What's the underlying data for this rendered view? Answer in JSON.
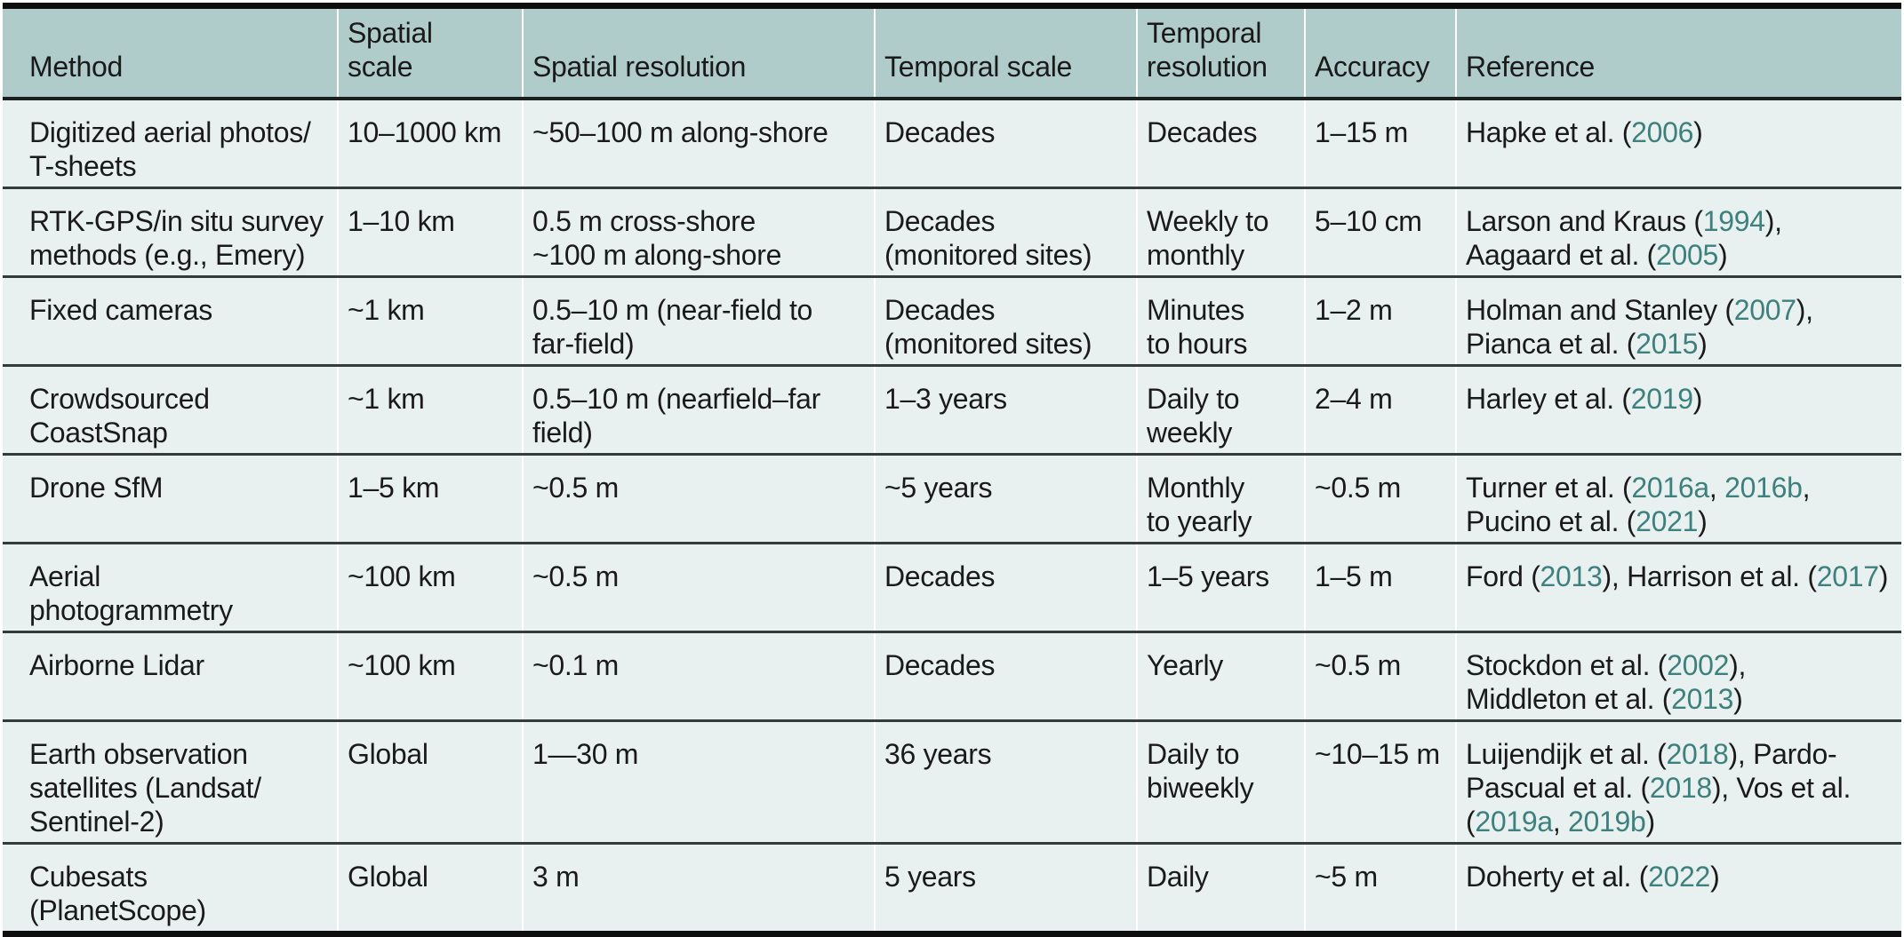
{
  "colors": {
    "header_bg": "#afcbca",
    "row_bg": "#e9f1f0",
    "text": "#1a1a1a",
    "link": "#3e807d",
    "rule": "#353b3b",
    "bar": "#0e0e0e"
  },
  "table": {
    "columns": [
      {
        "id": "method",
        "label": "Method"
      },
      {
        "id": "spatial_scale",
        "label": "Spatial\nscale"
      },
      {
        "id": "spatial_resolution",
        "label": "Spatial resolution"
      },
      {
        "id": "temporal_scale",
        "label": "Temporal scale"
      },
      {
        "id": "temporal_resolution",
        "label": "Temporal\nresolution"
      },
      {
        "id": "accuracy",
        "label": "Accuracy"
      },
      {
        "id": "reference",
        "label": "Reference"
      }
    ],
    "rows": [
      {
        "method": "Digitized aerial photos/\nT-sheets",
        "spatial_scale": "10–1000 km",
        "spatial_resolution": "~50–100 m along-shore",
        "temporal_scale": "Decades",
        "temporal_resolution": "Decades",
        "accuracy": "1–15 m",
        "reference": {
          "text": "Hapke et al. (2006)",
          "links": [
            "2006"
          ]
        }
      },
      {
        "method": "RTK-GPS/in situ survey\nmethods (e.g., Emery)",
        "spatial_scale": "1–10 km",
        "spatial_resolution": "0.5 m cross-shore\n~100 m along-shore",
        "temporal_scale": "Decades\n(monitored sites)",
        "temporal_resolution": "Weekly to\nmonthly",
        "accuracy": "5–10 cm",
        "reference": {
          "text": "Larson and Kraus (1994),\nAagaard et al. (2005)",
          "links": [
            "1994",
            "2005"
          ]
        }
      },
      {
        "method": "Fixed cameras",
        "spatial_scale": "~1 km",
        "spatial_resolution": "0.5–10 m (near-field to\nfar-field)",
        "temporal_scale": "Decades\n(monitored sites)",
        "temporal_resolution": "Minutes\nto hours",
        "accuracy": "1–2 m",
        "reference": {
          "text": "Holman and Stanley (2007),\nPianca et al. (2015)",
          "links": [
            "2007",
            "2015"
          ]
        }
      },
      {
        "method": "Crowdsourced\nCoastSnap",
        "spatial_scale": "~1 km",
        "spatial_resolution": "0.5–10 m (nearfield–far\nfield)",
        "temporal_scale": "1–3 years",
        "temporal_resolution": "Daily to\nweekly",
        "accuracy": "2–4 m",
        "reference": {
          "text": "Harley et al. (2019)",
          "links": [
            "2019"
          ]
        }
      },
      {
        "method": "Drone SfM",
        "spatial_scale": "1–5 km",
        "spatial_resolution": "~0.5 m",
        "temporal_scale": "~5 years",
        "temporal_resolution": "Monthly\nto yearly",
        "accuracy": "~0.5 m",
        "reference": {
          "text": "Turner et al. (2016a, 2016b,\nPucino et al. (2021)",
          "links": [
            "2016a",
            "2016b",
            "2021"
          ]
        }
      },
      {
        "method": "Aerial\nphotogrammetry",
        "spatial_scale": "~100 km",
        "spatial_resolution": "~0.5 m",
        "temporal_scale": "Decades",
        "temporal_resolution": "1–5 years",
        "accuracy": "1–5 m",
        "reference": {
          "text": "Ford (2013), Harrison et al. (2017)",
          "links": [
            "2013",
            "2017"
          ]
        }
      },
      {
        "method": "Airborne Lidar",
        "spatial_scale": "~100 km",
        "spatial_resolution": "~0.1 m",
        "temporal_scale": "Decades",
        "temporal_resolution": "Yearly",
        "accuracy": "~0.5 m",
        "reference": {
          "text": "Stockdon et al. (2002),\nMiddleton et al. (2013)",
          "links": [
            "2002",
            "2013"
          ]
        }
      },
      {
        "method": "Earth observation\nsatellites (Landsat/\nSentinel-2)",
        "spatial_scale": "Global",
        "spatial_resolution": "1—30 m",
        "temporal_scale": "36 years",
        "temporal_resolution": "Daily to\nbiweekly",
        "accuracy": "~10–15 m",
        "reference": {
          "text": "Luijendijk et al. (2018), Pardo-\nPascual et al. (2018), Vos et al.\n(2019a, 2019b)",
          "links": [
            "2018",
            "2019a",
            "2019b"
          ]
        }
      },
      {
        "method": "Cubesats\n(PlanetScope)",
        "spatial_scale": "Global",
        "spatial_resolution": "3 m",
        "temporal_scale": "5 years",
        "temporal_resolution": "Daily",
        "accuracy": "~5 m",
        "reference": {
          "text": "Doherty et al. (2022)",
          "links": [
            "2022"
          ]
        }
      }
    ]
  }
}
